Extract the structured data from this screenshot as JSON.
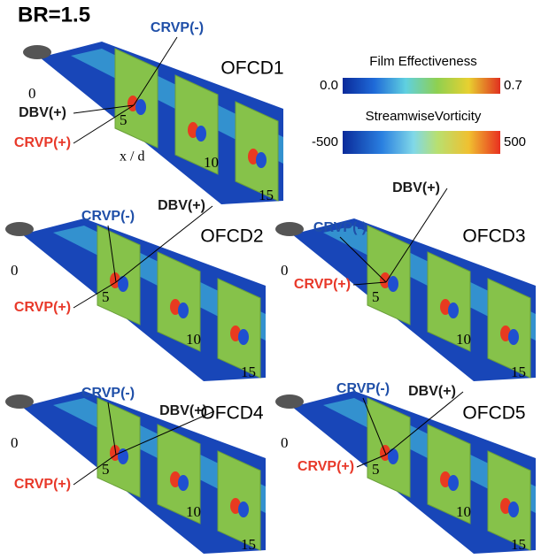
{
  "title": "BR=1.5",
  "legend": {
    "film_effectiveness": {
      "title": "Film Effectiveness",
      "ticks": [
        {
          "value": 0,
          "label": "0.0"
        },
        0.7
      ]
    },
    "vorticity": {
      "title": "StreamwiseVorticity",
      "ticks": [
        -500,
        500
      ]
    }
  },
  "panels": [
    {
      "name": "OFCD1",
      "axis_ticks": [
        0,
        5,
        10,
        15
      ],
      "axis_label": "x / d",
      "annotations": [
        {
          "text": "CRVP(-)",
          "color": "#1f4fa8"
        },
        {
          "text": "DBV(+)",
          "color": "#1a1a1a"
        },
        {
          "text": "CRVP(+)",
          "color": "#e8392a"
        }
      ]
    },
    {
      "name": "OFCD2",
      "axis_ticks": [
        0,
        5,
        10,
        15
      ],
      "annotations": [
        {
          "text": "CRVP(-)",
          "color": "#1f4fa8"
        },
        {
          "text": "DBV(+)",
          "color": "#1a1a1a"
        },
        {
          "text": "CRVP(+)",
          "color": "#e8392a"
        }
      ]
    },
    {
      "name": "OFCD3",
      "axis_ticks": [
        0,
        5,
        10,
        15
      ],
      "annotations": [
        {
          "text": "CRVP(-)",
          "color": "#1f4fa8"
        },
        {
          "text": "DBV(+)",
          "color": "#1a1a1a"
        },
        {
          "text": "CRVP(+)",
          "color": "#e8392a"
        }
      ]
    },
    {
      "name": "OFCD4",
      "axis_ticks": [
        0,
        5,
        10,
        15
      ],
      "annotations": [
        {
          "text": "CRVP(-)",
          "color": "#1f4fa8"
        },
        {
          "text": "DBV(+)",
          "color": "#1a1a1a"
        },
        {
          "text": "CRVP(+)",
          "color": "#e8392a"
        }
      ]
    },
    {
      "name": "OFCD5",
      "axis_ticks": [
        0,
        5,
        10,
        15
      ],
      "annotations": [
        {
          "text": "CRVP(-)",
          "color": "#1f4fa8"
        },
        {
          "text": "DBV(+)",
          "color": "#1a1a1a"
        },
        {
          "text": "CRVP(+)",
          "color": "#e8392a"
        }
      ]
    }
  ]
}
